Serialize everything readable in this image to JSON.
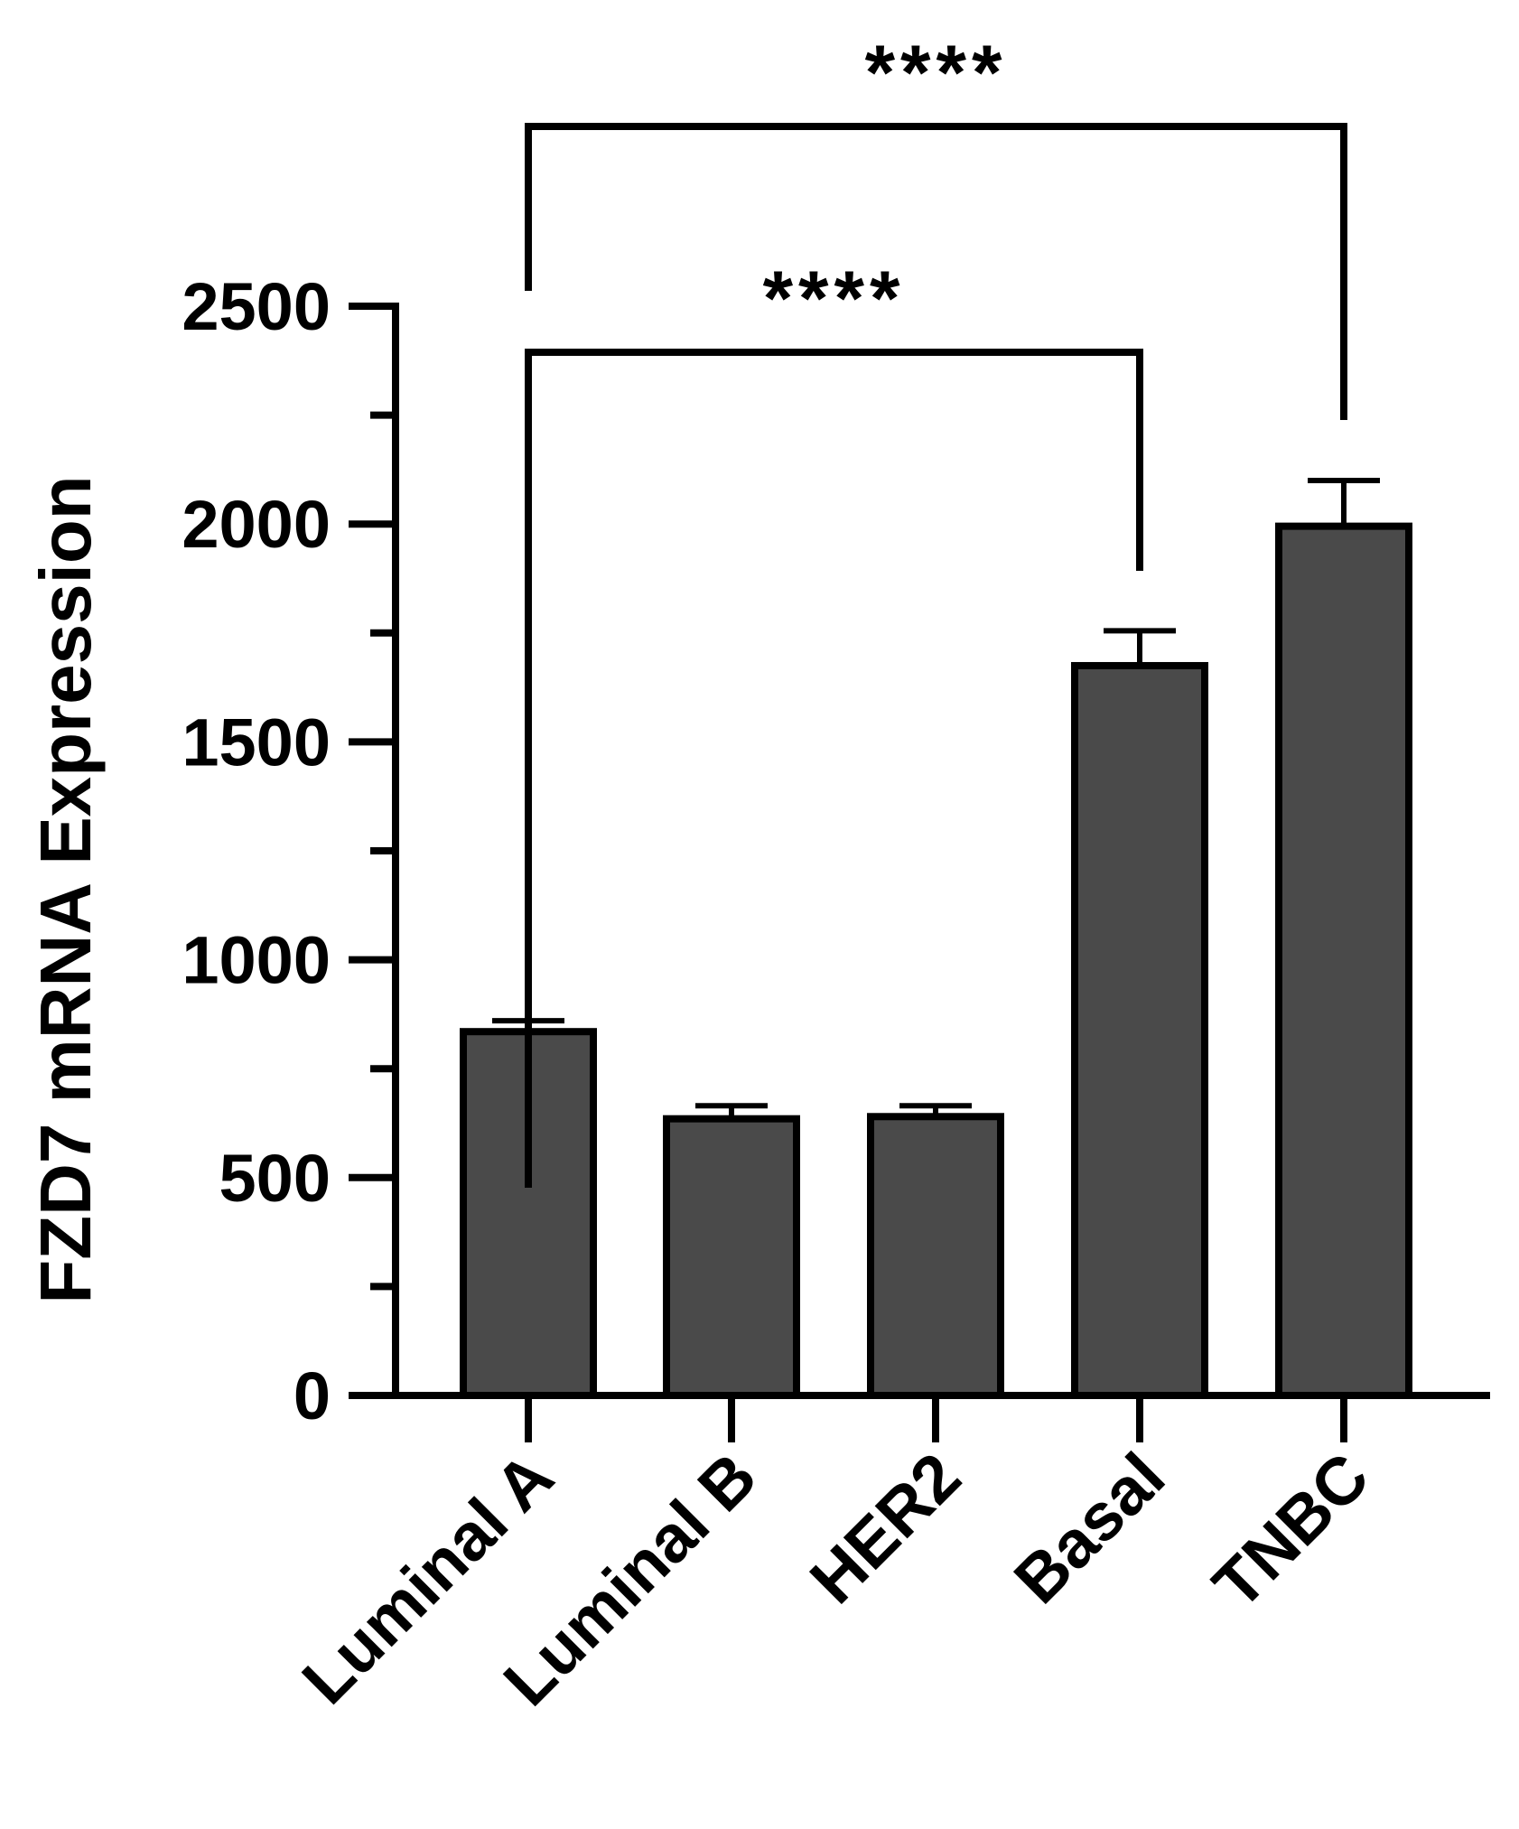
{
  "chart_data": {
    "type": "bar",
    "title": "",
    "xlabel": "",
    "ylabel": "FZD7 mRNA Expression",
    "ylim": [
      0,
      2500
    ],
    "yticks": [
      0,
      500,
      1000,
      1500,
      2000,
      2500
    ],
    "ytick_labels": [
      "0",
      "500",
      "1000",
      "1500",
      "2000",
      "2500"
    ],
    "categories": [
      "Luminal A",
      "Luminal B",
      "HER2",
      "Basal",
      "TNBC"
    ],
    "values": [
      835,
      635,
      640,
      1675,
      1995
    ],
    "errors": [
      25,
      30,
      25,
      80,
      105
    ],
    "bar_color": "#4a4a4a",
    "edge_color": "#000000",
    "grid": false,
    "legend": "none",
    "significance": [
      {
        "from": "Luminal A",
        "to": "Basal",
        "label": "****"
      },
      {
        "from": "Luminal A",
        "to": "TNBC",
        "label": "****"
      }
    ]
  }
}
